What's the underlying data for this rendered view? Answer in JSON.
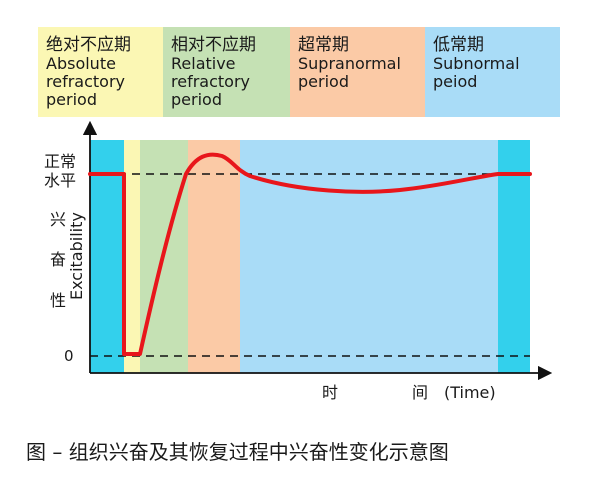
{
  "legend": [
    {
      "zh": "绝对不应期",
      "en": "Absolute\nrefractory\nperiod",
      "color": "#fbf7b4"
    },
    {
      "zh": "相对不应期",
      "en": "Relative\nrefractory\nperiod",
      "color": "#c5e1b4"
    },
    {
      "zh": "超常期",
      "en": "Supranormal\nperiod",
      "color": "#fbcaa6"
    },
    {
      "zh": "低常期",
      "en": "Subnormal\npeiod",
      "color": "#a9dcf7"
    }
  ],
  "y_axis": {
    "level_label": [
      "正常",
      "水平"
    ],
    "label_zh": [
      "兴",
      "奋",
      "性"
    ],
    "label_en": "Excitability",
    "zero_label": "0"
  },
  "x_axis": {
    "label_zh_1": "时",
    "label_zh_2": "间",
    "label_en": "(Time)"
  },
  "caption": "图  –    组织兴奋及其恢复过程中兴奋性变化示意图",
  "colors": {
    "curve": "#e8161b",
    "dashed": "#111111",
    "axis": "#111111",
    "baseline_region": "#33d0ec"
  },
  "chart_data": {
    "type": "line",
    "phases": [
      {
        "name": "绝对不应期",
        "color": "#fbf7b4"
      },
      {
        "name": "相对不应期",
        "color": "#c5e1b4"
      },
      {
        "name": "超常期",
        "color": "#fbcaa6"
      },
      {
        "name": "低常期",
        "color": "#a9dcf7"
      }
    ],
    "reference_lines": [
      "正常水平",
      "0"
    ]
  }
}
